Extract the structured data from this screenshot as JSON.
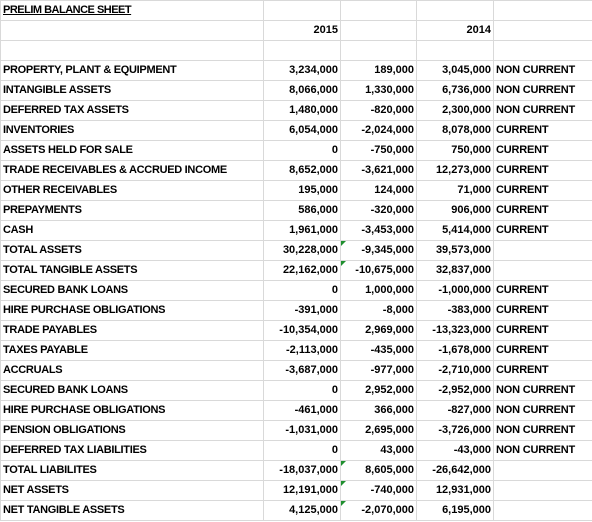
{
  "title": "PRELIM BALANCE SHEET",
  "col_year_1": "2015",
  "col_year_2": "2014",
  "rows": [
    {
      "label": "PROPERTY, PLANT & EQUIPMENT",
      "y2015": "3,234,000",
      "change": "189,000",
      "y2014": "3,045,000",
      "cls": "NON CURRENT"
    },
    {
      "label": "INTANGIBLE ASSETS",
      "y2015": "8,066,000",
      "change": "1,330,000",
      "y2014": "6,736,000",
      "cls": "NON CURRENT"
    },
    {
      "label": "DEFERRED TAX ASSETS",
      "y2015": "1,480,000",
      "change": "-820,000",
      "y2014": "2,300,000",
      "cls": "NON CURRENT"
    },
    {
      "label": "INVENTORIES",
      "y2015": "6,054,000",
      "change": "-2,024,000",
      "y2014": "8,078,000",
      "cls": "CURRENT"
    },
    {
      "label": "ASSETS HELD FOR SALE",
      "y2015": "0",
      "change": "-750,000",
      "y2014": "750,000",
      "cls": "CURRENT"
    },
    {
      "label": "TRADE RECEIVABLES & ACCRUED INCOME",
      "y2015": "8,652,000",
      "change": "-3,621,000",
      "y2014": "12,273,000",
      "cls": "CURRENT"
    },
    {
      "label": "OTHER RECEIVABLES",
      "y2015": "195,000",
      "change": "124,000",
      "y2014": "71,000",
      "cls": "CURRENT"
    },
    {
      "label": "PREPAYMENTS",
      "y2015": "586,000",
      "change": "-320,000",
      "y2014": "906,000",
      "cls": "CURRENT"
    },
    {
      "label": "CASH",
      "y2015": "1,961,000",
      "change": "-3,453,000",
      "y2014": "5,414,000",
      "cls": "CURRENT"
    },
    {
      "label": "TOTAL ASSETS",
      "y2015": "30,228,000",
      "change": "-9,345,000",
      "y2014": "39,573,000",
      "cls": ""
    },
    {
      "label": "TOTAL TANGIBLE ASSETS",
      "y2015": "22,162,000",
      "change": "-10,675,000",
      "y2014": "32,837,000",
      "cls": ""
    },
    {
      "label": "SECURED BANK LOANS",
      "y2015": "0",
      "change": "1,000,000",
      "y2014": "-1,000,000",
      "cls": "CURRENT"
    },
    {
      "label": "HIRE PURCHASE OBLIGATIONS",
      "y2015": "-391,000",
      "change": "-8,000",
      "y2014": "-383,000",
      "cls": "CURRENT"
    },
    {
      "label": "TRADE PAYABLES",
      "y2015": "-10,354,000",
      "change": "2,969,000",
      "y2014": "-13,323,000",
      "cls": "CURRENT"
    },
    {
      "label": "TAXES PAYABLE",
      "y2015": "-2,113,000",
      "change": "-435,000",
      "y2014": "-1,678,000",
      "cls": "CURRENT"
    },
    {
      "label": "ACCRUALS",
      "y2015": "-3,687,000",
      "change": "-977,000",
      "y2014": "-2,710,000",
      "cls": "CURRENT"
    },
    {
      "label": "SECURED BANK LOANS",
      "y2015": "0",
      "change": "2,952,000",
      "y2014": "-2,952,000",
      "cls": "NON CURRENT"
    },
    {
      "label": "HIRE PURCHASE OBLIGATIONS",
      "y2015": "-461,000",
      "change": "366,000",
      "y2014": "-827,000",
      "cls": "NON CURRENT"
    },
    {
      "label": "PENSION OBLIGATIONS",
      "y2015": "-1,031,000",
      "change": "2,695,000",
      "y2014": "-3,726,000",
      "cls": "NON CURRENT"
    },
    {
      "label": "DEFERRED TAX LIABILITIES",
      "y2015": "0",
      "change": "43,000",
      "y2014": "-43,000",
      "cls": "NON CURRENT"
    },
    {
      "label": "TOTAL LIABILITES",
      "y2015": "-18,037,000",
      "change": "8,605,000",
      "y2014": "-26,642,000",
      "cls": ""
    },
    {
      "label": "NET ASSETS",
      "y2015": "12,191,000",
      "change": "-740,000",
      "y2014": "12,931,000",
      "cls": ""
    },
    {
      "label": "NET TANGIBLE ASSETS",
      "y2015": "4,125,000",
      "change": "-2,070,000",
      "y2014": "6,195,000",
      "cls": ""
    }
  ],
  "colors": {
    "positive_change": "#1f2b9a",
    "negative_change": "#9b0f0f",
    "formula_marker": "#1f8f2f"
  }
}
